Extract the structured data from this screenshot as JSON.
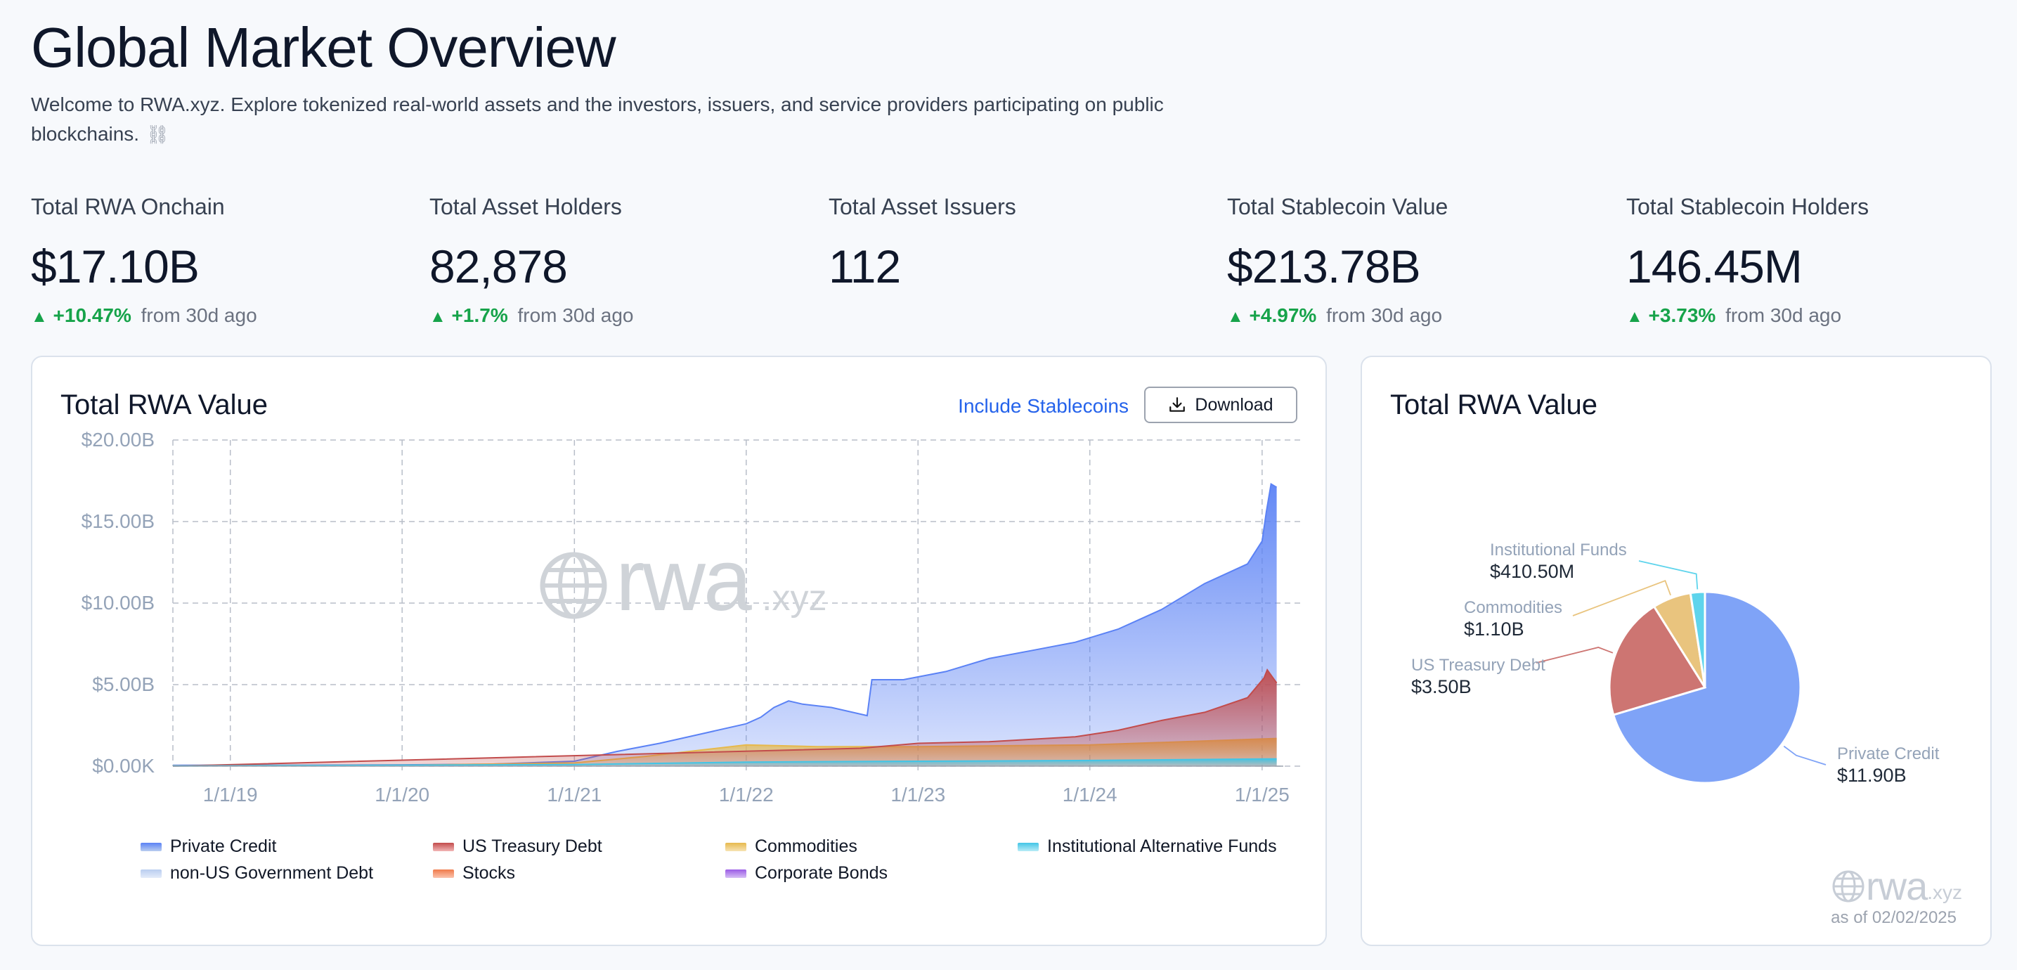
{
  "header": {
    "title": "Global Market Overview",
    "intro": "Welcome to RWA.xyz. Explore tokenized real-world assets and the investors, issuers, and service providers participating on public blockchains."
  },
  "stats": [
    {
      "label": "Total RWA Onchain",
      "value": "$17.10B",
      "change": "+10.47%",
      "suffix": "from 30d ago"
    },
    {
      "label": "Total Asset Holders",
      "value": "82,878",
      "change": "+1.7%",
      "suffix": "from 30d ago"
    },
    {
      "label": "Total Asset Issuers",
      "value": "112",
      "change": "",
      "suffix": ""
    },
    {
      "label": "Total Stablecoin Value",
      "value": "$213.78B",
      "change": "+4.97%",
      "suffix": "from 30d ago"
    },
    {
      "label": "Total Stablecoin Holders",
      "value": "146.45M",
      "change": "+3.73%",
      "suffix": "from 30d ago"
    }
  ],
  "area_card": {
    "title": "Total RWA Value",
    "include_link": "Include Stablecoins",
    "download_label": "Download",
    "watermark": {
      "main": "rwa",
      "suffix": ".xyz"
    },
    "download_icon": "download-tray-icon"
  },
  "pie_card": {
    "title": "Total RWA Value",
    "watermark": {
      "main": "rwa",
      "suffix": ".xyz"
    },
    "as_of": "as of 02/02/2025"
  },
  "colors": {
    "private_credit": "#5b82f5",
    "us_treasury": "#c24c4c",
    "commodities": "#e6b94d",
    "inst_funds": "#43c5e6",
    "non_us_gov": "#b9cdf0",
    "stocks": "#f07a4a",
    "corporate_bonds": "#9a5ae6",
    "positive": "#16a34a",
    "link": "#2563eb"
  },
  "chart_data": [
    {
      "type": "area",
      "title": "Total RWA Value",
      "x_ticks": [
        "1/1/19",
        "1/1/20",
        "1/1/21",
        "1/1/22",
        "1/1/23",
        "1/1/24",
        "1/1/25"
      ],
      "y_ticks": [
        "$0.00K",
        "$5.00B",
        "$10.00B",
        "$15.00B",
        "$20.00B"
      ],
      "ylim": [
        0,
        20
      ],
      "xlim": [
        "2018-09-01",
        "2025-02-15"
      ],
      "grid": true,
      "legend_position": "bottom",
      "series": [
        {
          "name": "Private Credit",
          "color": "#5b82f5",
          "points": [
            [
              "2018-09-01",
              0.05
            ],
            [
              "2019-06-01",
              0.06
            ],
            [
              "2020-01-01",
              0.08
            ],
            [
              "2020-07-01",
              0.12
            ],
            [
              "2021-01-01",
              0.3
            ],
            [
              "2021-04-01",
              0.9
            ],
            [
              "2021-07-01",
              1.4
            ],
            [
              "2021-10-01",
              2.0
            ],
            [
              "2022-01-01",
              2.6
            ],
            [
              "2022-02-01",
              3.0
            ],
            [
              "2022-03-01",
              3.6
            ],
            [
              "2022-04-01",
              4.0
            ],
            [
              "2022-05-01",
              3.8
            ],
            [
              "2022-07-01",
              3.6
            ],
            [
              "2022-09-15",
              3.1
            ],
            [
              "2022-09-25",
              5.3
            ],
            [
              "2022-12-01",
              5.3
            ],
            [
              "2023-03-01",
              5.8
            ],
            [
              "2023-06-01",
              6.6
            ],
            [
              "2023-09-01",
              7.1
            ],
            [
              "2023-12-01",
              7.6
            ],
            [
              "2024-03-01",
              8.4
            ],
            [
              "2024-06-01",
              9.6
            ],
            [
              "2024-09-01",
              11.2
            ],
            [
              "2024-12-01",
              12.4
            ],
            [
              "2025-01-01",
              13.8
            ],
            [
              "2025-01-10",
              15.6
            ],
            [
              "2025-01-20",
              17.3
            ],
            [
              "2025-02-01",
              17.1
            ]
          ]
        },
        {
          "name": "US Treasury Debt",
          "color": "#c24c4c",
          "points": [
            [
              "2018-09-01",
              0
            ],
            [
              "2022-09-01",
              1.1
            ],
            [
              "2023-01-01",
              1.4
            ],
            [
              "2023-06-01",
              1.5
            ],
            [
              "2023-12-01",
              1.8
            ],
            [
              "2024-03-01",
              2.2
            ],
            [
              "2024-06-01",
              2.8
            ],
            [
              "2024-09-01",
              3.3
            ],
            [
              "2024-12-01",
              4.2
            ],
            [
              "2025-01-05",
              5.4
            ],
            [
              "2025-01-12",
              5.9
            ],
            [
              "2025-02-01",
              5.1
            ]
          ]
        },
        {
          "name": "Commodities",
          "color": "#e6b94d",
          "points": [
            [
              "2018-09-01",
              0.02
            ],
            [
              "2020-01-01",
              0.05
            ],
            [
              "2021-01-01",
              0.2
            ],
            [
              "2021-06-01",
              0.6
            ],
            [
              "2022-01-01",
              1.3
            ],
            [
              "2022-06-01",
              1.2
            ],
            [
              "2023-01-01",
              1.2
            ],
            [
              "2024-01-01",
              1.3
            ],
            [
              "2025-02-01",
              1.7
            ]
          ]
        },
        {
          "name": "Institutional Alternative Funds",
          "color": "#43c5e6",
          "points": [
            [
              "2018-09-01",
              0.01
            ],
            [
              "2021-01-01",
              0.1
            ],
            [
              "2022-01-01",
              0.25
            ],
            [
              "2023-01-01",
              0.3
            ],
            [
              "2024-01-01",
              0.35
            ],
            [
              "2025-02-01",
              0.45
            ]
          ]
        },
        {
          "name": "non-US Government Debt",
          "color": "#b9cdf0",
          "points": []
        },
        {
          "name": "Stocks",
          "color": "#f07a4a",
          "points": []
        },
        {
          "name": "Corporate Bonds",
          "color": "#9a5ae6",
          "points": []
        }
      ]
    },
    {
      "type": "pie",
      "title": "Total RWA Value",
      "slices": [
        {
          "label": "Private Credit",
          "display": "$11.90B",
          "value": 11.9,
          "color": "#7fa3f7"
        },
        {
          "label": "US Treasury Debt",
          "display": "$3.50B",
          "value": 3.5,
          "color": "#cd7572"
        },
        {
          "label": "Commodities",
          "display": "$1.10B",
          "value": 1.1,
          "color": "#e9c47e"
        },
        {
          "label": "Institutional Funds",
          "display": "$410.50M",
          "value": 0.4105,
          "color": "#5ed4ec"
        }
      ]
    }
  ]
}
